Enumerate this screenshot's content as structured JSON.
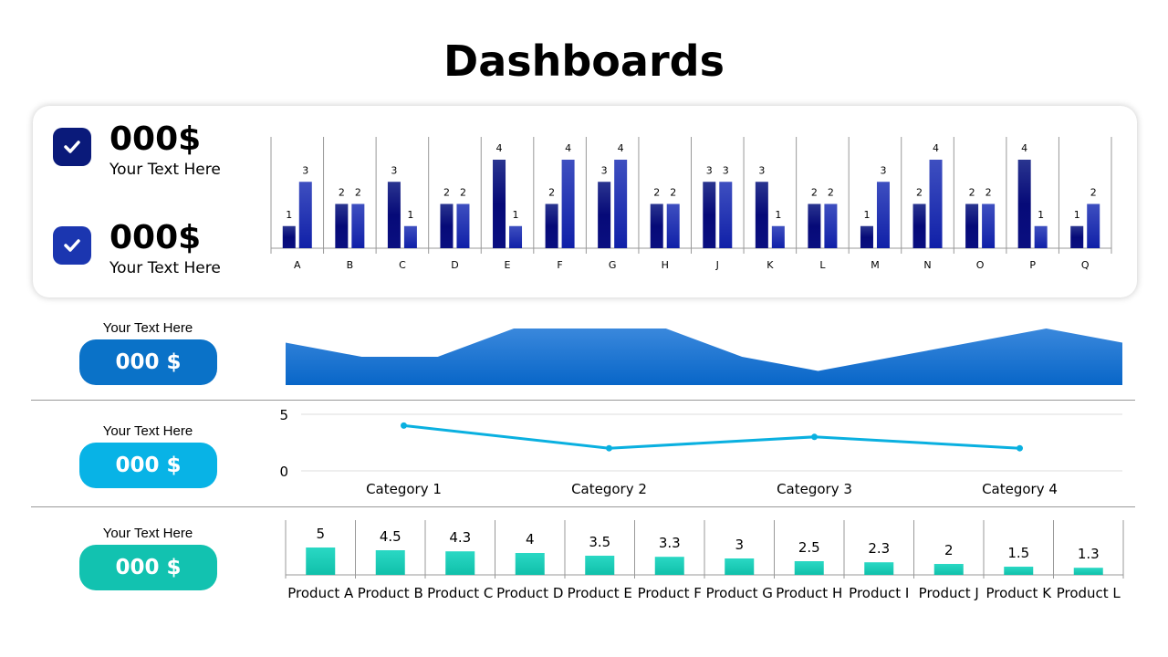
{
  "title": "Dashboards",
  "kpis": [
    {
      "value": "000$",
      "text": "Your Text Here",
      "color": "#0a1a7a"
    },
    {
      "value": "000$",
      "text": "Your Text Here",
      "color": "#1b36b0"
    }
  ],
  "rows": [
    {
      "label": "Your Text Here",
      "value": "000 $",
      "color": "#0a72c8"
    },
    {
      "label": "Your Text Here",
      "value": "000 $",
      "color": "#08b3e6"
    },
    {
      "label": "Your Text Here",
      "value": "000 $",
      "color": "#12c2b0"
    }
  ],
  "chart_data": [
    {
      "type": "bar",
      "categories": [
        "A",
        "B",
        "C",
        "D",
        "E",
        "F",
        "G",
        "H",
        "J",
        "K",
        "L",
        "M",
        "N",
        "O",
        "P",
        "Q"
      ],
      "series": [
        {
          "values": [
            1,
            2,
            3,
            2,
            4,
            2,
            3,
            2,
            3,
            3,
            2,
            1,
            2,
            2,
            4,
            1
          ],
          "color": "#0a0f80"
        },
        {
          "values": [
            3,
            2,
            1,
            2,
            1,
            4,
            4,
            2,
            3,
            1,
            2,
            3,
            4,
            2,
            1,
            2
          ],
          "color": "#1a2eb0"
        }
      ],
      "ylim": [
        0,
        5
      ],
      "data_labels": true
    },
    {
      "type": "area",
      "values": [
        3,
        2,
        2,
        4,
        4,
        4,
        2,
        1,
        2,
        3,
        4,
        3
      ],
      "ylim": [
        0,
        4
      ],
      "color": "#0a6ed0"
    },
    {
      "type": "line",
      "categories": [
        "Category 1",
        "Category 2",
        "Category 3",
        "Category 4"
      ],
      "values": [
        4,
        2,
        3,
        2
      ],
      "ylim": [
        0,
        5
      ],
      "yticks": [
        "0",
        "5"
      ],
      "color": "#0ab0e0"
    },
    {
      "type": "bar",
      "categories": [
        "Product A",
        "Product B",
        "Product C",
        "Product D",
        "Product E",
        "Product F",
        "Product G",
        "Product H",
        "Product I",
        "Product J",
        "Product K",
        "Product L"
      ],
      "values": [
        5,
        4.5,
        4.3,
        4,
        3.5,
        3.3,
        3,
        2.5,
        2.3,
        2,
        1.5,
        1.3
      ],
      "value_labels": [
        "5",
        "4.5",
        "4.3",
        "4",
        "3.5",
        "3.3",
        "3",
        "2.5",
        "2.3",
        "2",
        "1.5",
        "1.3"
      ],
      "ylim": [
        0,
        10
      ],
      "color": "#14c8b4",
      "data_labels": true
    }
  ]
}
